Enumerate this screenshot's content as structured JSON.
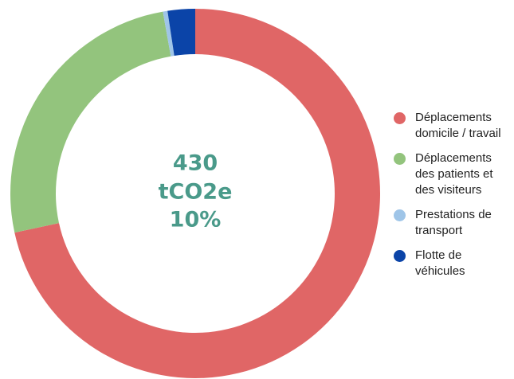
{
  "chart_data": {
    "type": "donut",
    "center_labels": [
      "430",
      "tCO2e",
      "10%"
    ],
    "series": [
      {
        "name": "Déplacements domicile / travail",
        "color": "#e06666",
        "values": [
          71.6
        ]
      },
      {
        "name": "Déplacements des patients et des visiteurs",
        "color": "#93c47d",
        "values": [
          25.6
        ]
      },
      {
        "name": "Prestations de transport",
        "color": "#9fc5e8",
        "values": [
          0.4
        ]
      },
      {
        "name": "Flotte de véhicules",
        "color": "#0b44a8",
        "values": [
          2.4
        ]
      }
    ],
    "legend": "right"
  }
}
